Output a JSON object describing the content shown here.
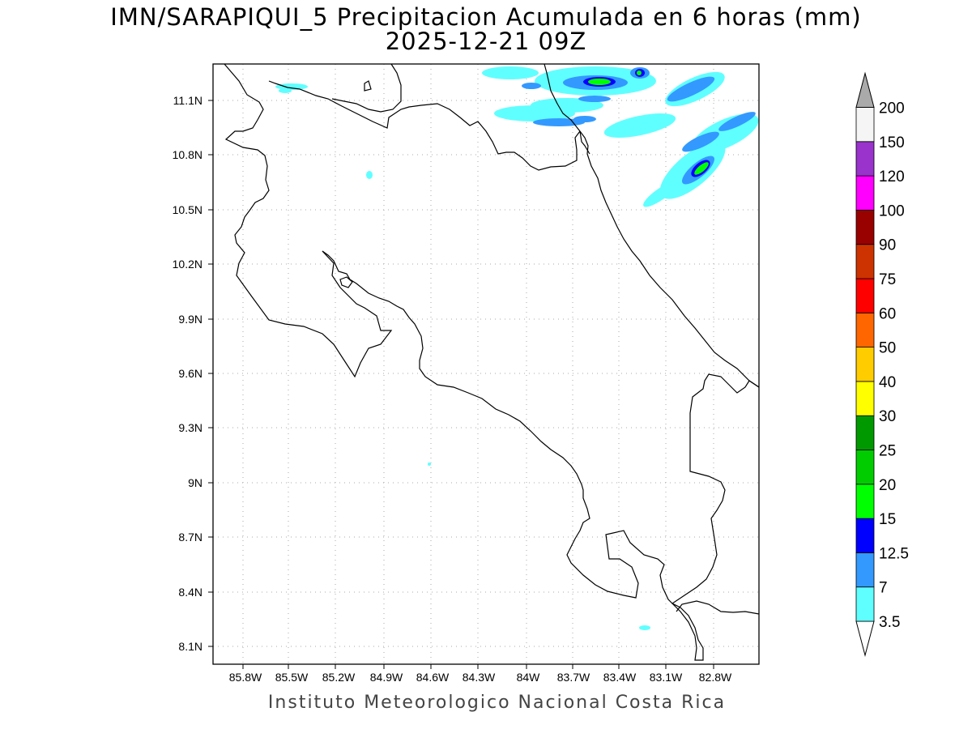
{
  "title_line1": "IMN/SARAPIQUI_5 Precipitacion Acumulada en 6 horas (mm)",
  "title_line2": "2025-12-21 09Z",
  "footer": "Instituto Meteorologico Nacional Costa Rica",
  "map": {
    "lon_range": [
      -85.97,
      -82.95
    ],
    "lat_range": [
      8.02,
      11.32
    ],
    "lat_ticks": [
      "11.1N",
      "10.8N",
      "10.5N",
      "10.2N",
      "9.9N",
      "9.6N",
      "9.3N",
      "9N",
      "8.7N",
      "8.4N",
      "8.1N"
    ],
    "lon_ticks": [
      "85.8W",
      "85.5W",
      "85.2W",
      "84.9W",
      "84.6W",
      "84.3W",
      "84W",
      "83.7W",
      "83.4W",
      "83.1W",
      "82.8W"
    ],
    "grid": true
  },
  "colorbar": {
    "levels": [
      "3.5",
      "7",
      "12.5",
      "15",
      "20",
      "25",
      "30",
      "40",
      "50",
      "60",
      "75",
      "90",
      "100",
      "120",
      "150",
      "200"
    ],
    "colors": [
      "#60ffff",
      "#3399ff",
      "#0000ff",
      "#00ff00",
      "#00cc00",
      "#009900",
      "#ffff00",
      "#ffcc00",
      "#ff6600",
      "#ff0000",
      "#cc3300",
      "#990000",
      "#ff00ff",
      "#9933cc",
      "#f5f5f5",
      "#aaaaaa"
    ]
  }
}
